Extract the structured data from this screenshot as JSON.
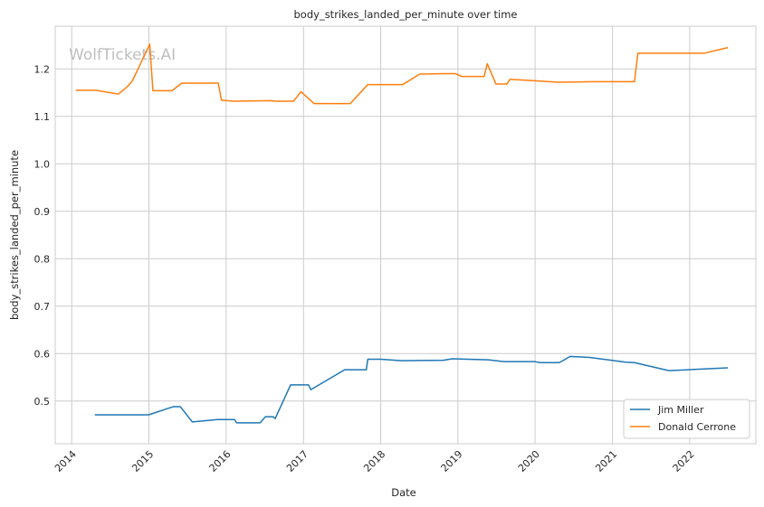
{
  "chart_data": {
    "type": "line",
    "title": "body_strikes_landed_per_minute over time",
    "xlabel": "Date",
    "ylabel": "body_strikes_landed_per_minute",
    "watermark": "WolfTickets.AI",
    "x_tick_labels": [
      "2014",
      "2015",
      "2016",
      "2017",
      "2018",
      "2019",
      "2020",
      "2021",
      "2022"
    ],
    "y_ticks": [
      0.5,
      0.6,
      0.7,
      0.8,
      0.9,
      1.0,
      1.1,
      1.2
    ],
    "y_tick_labels": [
      "0.5",
      "0.6",
      "0.7",
      "0.8",
      "0.9",
      "1.0",
      "1.1",
      "1.2"
    ],
    "xlim": [
      "2013-10-15",
      "2022-11-10"
    ],
    "ylim": [
      0.41,
      1.29
    ],
    "grid": true,
    "legend_position": "lower-right",
    "series": [
      {
        "name": "Jim Miller",
        "color": "#1f77b4",
        "points": [
          [
            "2014-04-20",
            0.471
          ],
          [
            "2014-12-31",
            0.471
          ],
          [
            "2015-04-25",
            0.488
          ],
          [
            "2015-05-30",
            0.488
          ],
          [
            "2015-07-25",
            0.456
          ],
          [
            "2015-11-20",
            0.461
          ],
          [
            "2016-02-10",
            0.461
          ],
          [
            "2016-02-20",
            0.454
          ],
          [
            "2016-06-10",
            0.454
          ],
          [
            "2016-07-05",
            0.467
          ],
          [
            "2016-08-10",
            0.467
          ],
          [
            "2016-08-20",
            0.463
          ],
          [
            "2016-11-01",
            0.534
          ],
          [
            "2017-01-25",
            0.534
          ],
          [
            "2017-02-05",
            0.524
          ],
          [
            "2017-07-15",
            0.566
          ],
          [
            "2017-10-25",
            0.566
          ],
          [
            "2017-11-01",
            0.588
          ],
          [
            "2018-01-01",
            0.588
          ],
          [
            "2018-04-10",
            0.585
          ],
          [
            "2018-10-25",
            0.586
          ],
          [
            "2018-12-05",
            0.589
          ],
          [
            "2019-05-25",
            0.587
          ],
          [
            "2019-08-05",
            0.583
          ],
          [
            "2020-01-01",
            0.583
          ],
          [
            "2020-01-25",
            0.581
          ],
          [
            "2020-04-25",
            0.581
          ],
          [
            "2020-06-15",
            0.594
          ],
          [
            "2020-09-15",
            0.592
          ],
          [
            "2021-03-05",
            0.582
          ],
          [
            "2021-04-15",
            0.581
          ],
          [
            "2021-09-25",
            0.564
          ],
          [
            "2022-07-01",
            0.57
          ]
        ]
      },
      {
        "name": "Donald Cerrone",
        "color": "#ff7f0e",
        "points": [
          [
            "2014-01-20",
            1.155
          ],
          [
            "2014-04-25",
            1.155
          ],
          [
            "2014-08-10",
            1.147
          ],
          [
            "2014-09-20",
            1.162
          ],
          [
            "2014-10-15",
            1.175
          ],
          [
            "2015-01-05",
            1.252
          ],
          [
            "2015-01-20",
            1.154
          ],
          [
            "2015-04-20",
            1.154
          ],
          [
            "2015-06-05",
            1.17
          ],
          [
            "2015-11-25",
            1.17
          ],
          [
            "2015-12-10",
            1.134
          ],
          [
            "2016-02-05",
            1.132
          ],
          [
            "2016-07-30",
            1.133
          ],
          [
            "2016-08-25",
            1.132
          ],
          [
            "2016-11-15",
            1.132
          ],
          [
            "2016-12-20",
            1.152
          ],
          [
            "2017-02-20",
            1.127
          ],
          [
            "2017-08-10",
            1.127
          ],
          [
            "2017-11-01",
            1.167
          ],
          [
            "2018-04-15",
            1.167
          ],
          [
            "2018-07-05",
            1.189
          ],
          [
            "2018-10-25",
            1.19
          ],
          [
            "2018-12-20",
            1.19
          ],
          [
            "2019-01-20",
            1.184
          ],
          [
            "2019-05-05",
            1.184
          ],
          [
            "2019-05-20",
            1.211
          ],
          [
            "2019-06-30",
            1.168
          ],
          [
            "2019-08-20",
            1.168
          ],
          [
            "2019-09-05",
            1.178
          ],
          [
            "2020-01-01",
            1.175
          ],
          [
            "2020-04-20",
            1.172
          ],
          [
            "2020-10-01",
            1.173
          ],
          [
            "2021-04-15",
            1.173
          ],
          [
            "2021-05-01",
            1.233
          ],
          [
            "2022-03-10",
            1.233
          ],
          [
            "2022-07-01",
            1.245
          ]
        ]
      }
    ]
  }
}
